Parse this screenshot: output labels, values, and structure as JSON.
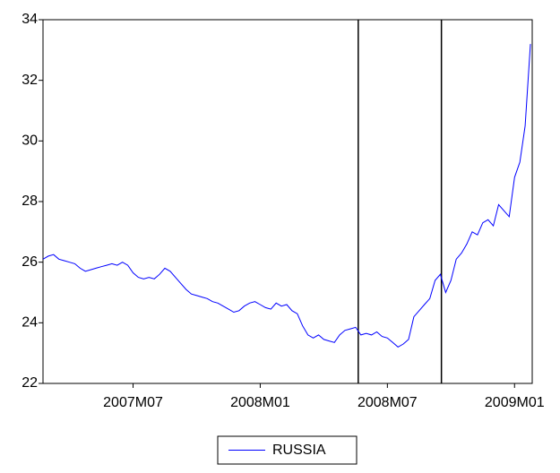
{
  "chart_data": {
    "type": "line",
    "categories": [
      null,
      null,
      null,
      null,
      null,
      null,
      null,
      null,
      null,
      null,
      null,
      null,
      null,
      null,
      null,
      null,
      null,
      "2007M07",
      null,
      null,
      null,
      null,
      null,
      null,
      null,
      null,
      null,
      null,
      null,
      null,
      null,
      null,
      null,
      null,
      null,
      null,
      null,
      null,
      null,
      null,
      null,
      "2008M01",
      null,
      null,
      null,
      null,
      null,
      null,
      null,
      null,
      null,
      null,
      null,
      null,
      null,
      null,
      null,
      null,
      null,
      null,
      null,
      null,
      null,
      null,
      null,
      "2008M07",
      null,
      null,
      null,
      null,
      null,
      null,
      null,
      null,
      null,
      null,
      null,
      null,
      null,
      null,
      null,
      null,
      null,
      null,
      null,
      null,
      null,
      null,
      null,
      "2009M01",
      null,
      null,
      null
    ],
    "series": [
      {
        "name": "RUSSIA",
        "color": "#0000ff",
        "values": [
          26.1,
          26.2,
          26.25,
          26.1,
          26.05,
          26.0,
          25.95,
          25.8,
          25.7,
          25.75,
          25.8,
          25.85,
          25.9,
          25.95,
          25.9,
          26.0,
          25.9,
          25.65,
          25.5,
          25.45,
          25.5,
          25.45,
          25.6,
          25.8,
          25.7,
          25.5,
          25.3,
          25.1,
          24.95,
          24.9,
          24.85,
          24.8,
          24.7,
          24.65,
          24.55,
          24.45,
          24.35,
          24.4,
          24.55,
          24.65,
          24.7,
          24.6,
          24.5,
          24.45,
          24.65,
          24.55,
          24.6,
          24.4,
          24.3,
          23.9,
          23.6,
          23.5,
          23.6,
          23.45,
          23.4,
          23.35,
          23.6,
          23.75,
          23.8,
          23.85,
          23.6,
          23.65,
          23.6,
          23.7,
          23.55,
          23.5,
          23.35,
          23.2,
          23.3,
          23.45,
          24.2,
          24.4,
          24.6,
          24.8,
          25.4,
          25.6,
          25.0,
          25.4,
          26.1,
          26.3,
          26.6,
          27.0,
          26.9,
          27.3,
          27.4,
          27.2,
          27.9,
          27.7,
          27.5,
          28.8,
          29.3,
          30.5,
          33.2
        ]
      }
    ],
    "ylim": [
      22,
      34
    ],
    "yticks": [
      22,
      24,
      26,
      28,
      30,
      32,
      34
    ],
    "vlines": [
      59.5,
      75.2
    ],
    "legend": "bottom"
  }
}
